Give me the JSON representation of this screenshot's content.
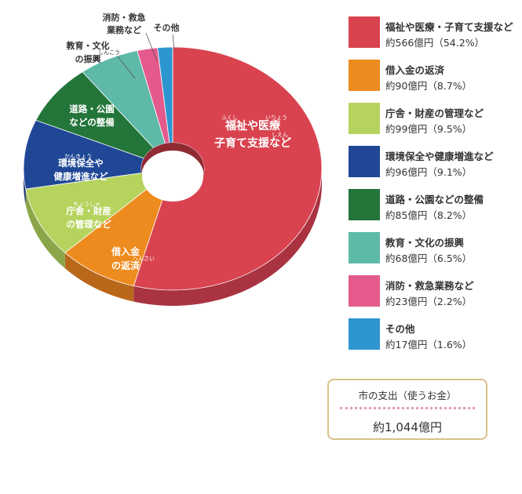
{
  "chart_data": {
    "type": "pie",
    "unit": "億円",
    "categories": [
      "福祉や医療・子育て支援など",
      "借入金の返済",
      "庁舎・財産の管理など",
      "環境保全や健康増進など",
      "道路・公園などの整備",
      "教育・文化の振興",
      "消防・救急業務など",
      "その他"
    ],
    "values": [
      566,
      90,
      99,
      96,
      85,
      68,
      23,
      17
    ],
    "percents": [
      54.2,
      8.7,
      9.5,
      9.1,
      8.2,
      6.5,
      2.2,
      1.6
    ],
    "value_labels": [
      "約566億円（54.2%）",
      "約90億円（8.7%）",
      "約99億円（9.5%）",
      "約96億円（9.1%）",
      "約85億円（8.2%）",
      "約68億円（6.5%）",
      "約23億円（2.2%）",
      "約17億円（1.6%）"
    ],
    "slice_labels": [
      [
        "福祉や医療",
        "子育て支援など"
      ],
      [
        "借入金",
        "の返済"
      ],
      [
        "庁舎・財産",
        "の管理など"
      ],
      [
        "環境保全や",
        "健康増進など"
      ],
      [
        "道路・公園",
        "などの整備"
      ],
      [
        "教育・文化",
        "の振興"
      ],
      [
        "消防・救急",
        "業務など"
      ],
      [
        "その他"
      ]
    ],
    "colors": [
      "#d9434f",
      "#ee8b1e",
      "#b6d35e",
      "#1f4796",
      "#23753a",
      "#5eb9a9",
      "#e45a8c",
      "#2e96cf"
    ],
    "side_colors": [
      "#a93341",
      "#b9681a",
      "#8aa648",
      "#173671",
      "#195a2b",
      "#458d81",
      "#ae4569",
      "#2272a0"
    ],
    "legend_placement": "right",
    "ruby": {
      "福祉": "ふくし",
      "医療": "いりょう",
      "支援": "しえん",
      "返済": "へんさい",
      "庁舎": "ちょうしゃ",
      "環境": "かんきょう",
      "振興": "しんこう"
    }
  },
  "summary": {
    "title": "市の支出（使うお金）",
    "total": "約1,044億円"
  }
}
